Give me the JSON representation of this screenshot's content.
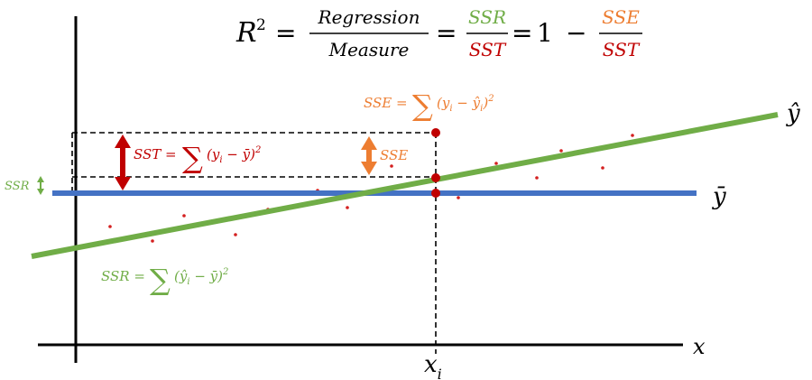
{
  "formula": {
    "lhs": "R",
    "lhs_sup": "2",
    "eq1": "=",
    "frac1_num": "Regression",
    "frac1_den": "Measure",
    "eq2": "=",
    "frac2_num": "SSR",
    "frac2_den": "SST",
    "eq3": "=",
    "one": "1",
    "minus": "−",
    "frac3_num": "SSE",
    "frac3_den": "SST"
  },
  "labels": {
    "y_hat": "ŷ",
    "y_bar": "ȳ",
    "x_axis": "x",
    "x_i_base": "x",
    "x_i_sub": "i",
    "ssr_side": "SSR",
    "sse_small": "SSE"
  },
  "equations": {
    "sse": {
      "lhs": "SSE =",
      "sum": "∑",
      "body_open": "(y",
      "i1": "i",
      "minus": " − ",
      "hat": "ŷ",
      "i2": "i",
      "close": ")",
      "sup": "2"
    },
    "sst": {
      "lhs": "SST =",
      "sum": "∑",
      "body_open": "(y",
      "i1": "i",
      "minus": " − ",
      "bar": "ȳ",
      "close": ")",
      "sup": "2"
    },
    "ssr": {
      "lhs": "SSR =",
      "sum": "∑",
      "body_open": "(",
      "hat": "ŷ",
      "i1": "i",
      "minus": " − ",
      "bar": "ȳ",
      "close": ")",
      "sup": "2"
    }
  },
  "colors": {
    "green": "#70ad47",
    "blue": "#4472c4",
    "red": "#c00000",
    "orange": "#ed7d31",
    "black": "#000000"
  }
}
